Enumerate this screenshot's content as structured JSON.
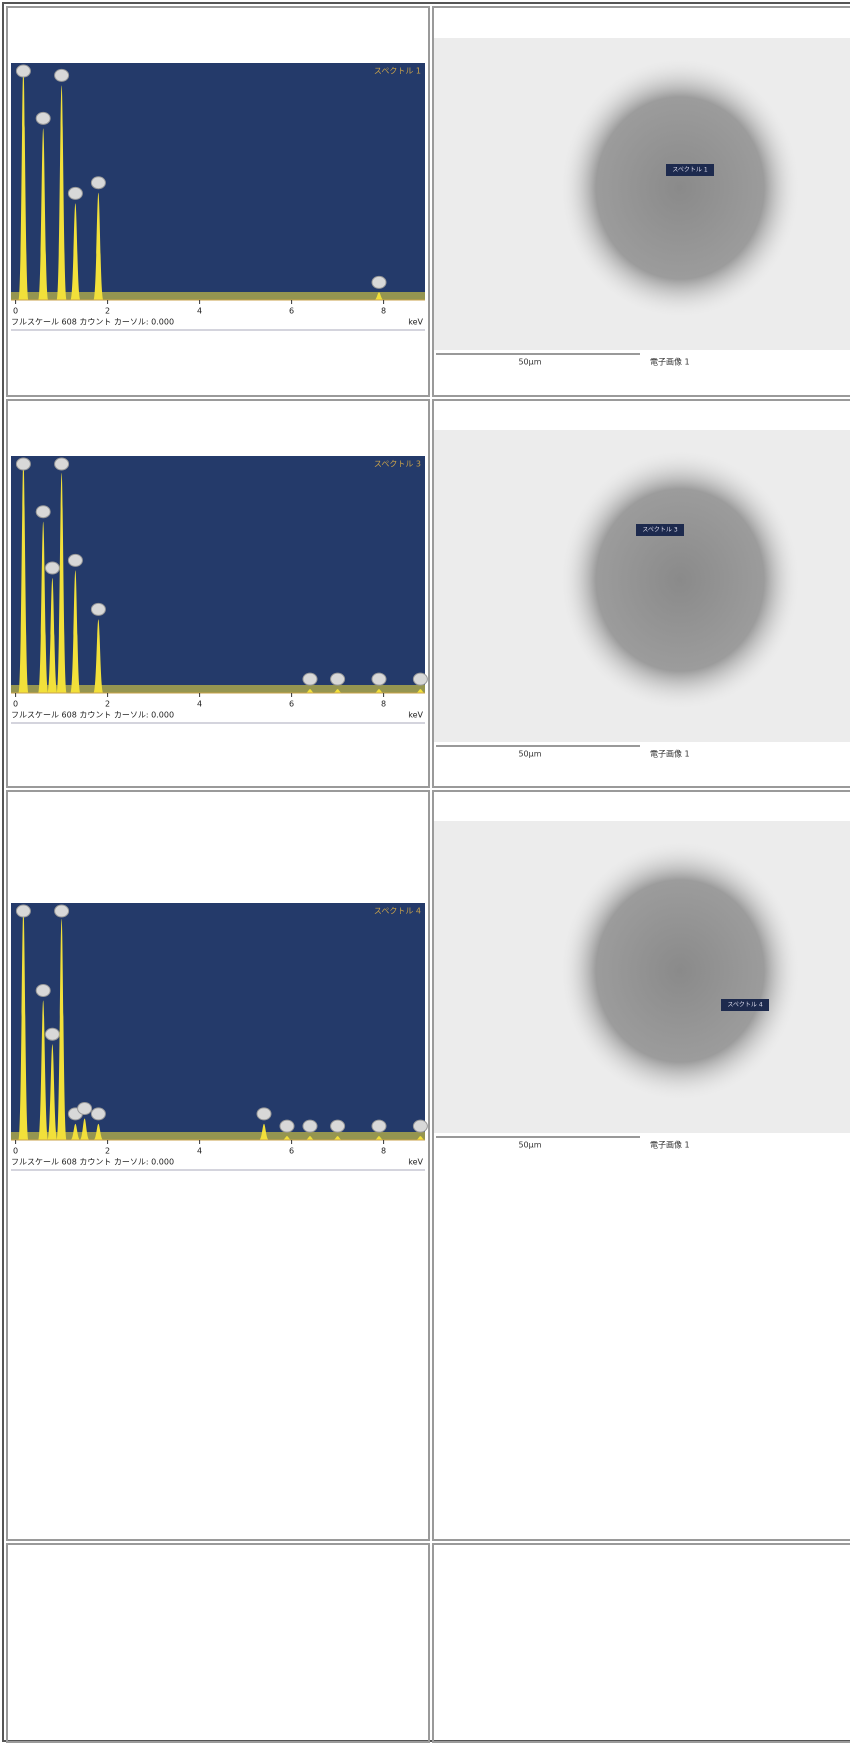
{
  "chart_data": [
    {
      "type": "spectrum",
      "title": "スペクトル 1",
      "x": [
        0.17,
        0.6,
        1.0,
        1.3,
        1.8,
        7.9
      ],
      "values": [
        608,
        448,
        560,
        252,
        280,
        20
      ],
      "color": "#f2e03a",
      "xlim": [
        -0.1,
        8.9
      ],
      "ylim": [
        0,
        608
      ],
      "xticks": [
        0,
        2,
        4,
        6,
        8
      ],
      "xlabel": "keV",
      "footer": "フルスケール 608 カウント カーソル: 0.000"
    },
    {
      "type": "spectrum",
      "title": "スペクトル 3",
      "x": [
        0.17,
        0.6,
        0.8,
        1.0,
        1.3,
        1.8,
        6.4,
        7.0,
        7.9,
        8.8
      ],
      "values": [
        608,
        447,
        300,
        574,
        320,
        192,
        10,
        10,
        10,
        10
      ],
      "color": "#f2e03a",
      "xlim": [
        -0.1,
        8.9
      ],
      "ylim": [
        0,
        608
      ],
      "xticks": [
        0,
        2,
        4,
        6,
        8
      ],
      "xlabel": "keV",
      "footer": "フルスケール 608 カウント カーソル: 0.000"
    },
    {
      "type": "spectrum",
      "title": "スペクトル 4",
      "x": [
        0.17,
        0.6,
        0.8,
        1.0,
        1.3,
        1.5,
        1.8,
        5.4,
        5.9,
        6.4,
        7.0,
        7.9,
        8.8
      ],
      "values": [
        608,
        364,
        250,
        577,
        42,
        56,
        42,
        42,
        10,
        10,
        10,
        10,
        10
      ],
      "color": "#f2e03a",
      "xlim": [
        -0.1,
        8.9
      ],
      "ylim": [
        0,
        608
      ],
      "xticks": [
        0,
        2,
        4,
        6,
        8
      ],
      "xlabel": "keV",
      "footer": "フルスケール 608 カウント カーソル: 0.000"
    }
  ],
  "images": [
    {
      "marker": "スペクトル 1",
      "scale_bar": "50μm",
      "caption": "電子画像 1"
    },
    {
      "marker": "スペクトル 3",
      "scale_bar": "50μm",
      "caption": "電子画像 1"
    },
    {
      "marker": "スペクトル 4",
      "scale_bar": "50μm",
      "caption": "電子画像 1"
    }
  ]
}
